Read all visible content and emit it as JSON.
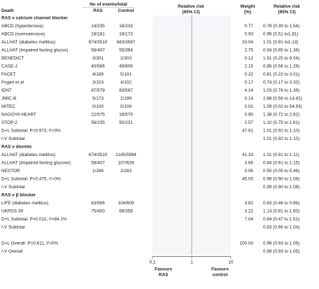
{
  "chart_data": {
    "type": "forest",
    "header": {
      "events_group": "No of events/total",
      "col_label": "Death",
      "col_ras": "RAS",
      "col_control": "Control",
      "rr_line1": "Relative risk",
      "rr_line2": "(95% CI)",
      "weight_line1": "Weight",
      "weight_line2": "(%)",
      "ci_line1": "Relative risk",
      "ci_line2": "(95% CI)"
    },
    "x_scale": "log",
    "xlim": [
      0.1,
      10
    ],
    "x_ticks": [
      {
        "value": 0.1,
        "label": "0.1"
      },
      {
        "value": 1,
        "label": "1"
      },
      {
        "value": 10,
        "label": "10"
      }
    ],
    "favours_left": [
      "Favours",
      "RAS"
    ],
    "favours_right": [
      "Favours",
      "control"
    ],
    "rows": [
      {
        "kind": "group",
        "label": "RAS v calcium channel blocker"
      },
      {
        "kind": "study",
        "label": "ABCD (hypertensive)",
        "ras": "14/235",
        "control": "18/233",
        "weight": "0.77",
        "ci": "0.78 (0.39 to 1.54)",
        "rr": 0.78,
        "lo": 0.39,
        "hi": 1.54,
        "w": 0.77
      },
      {
        "kind": "study",
        "label": "ABCD (normotensive)",
        "ras": "19/181",
        "control": "19/173",
        "weight": "0.93",
        "ci": "0.96 (0.51 to1.81)",
        "rr": 0.96,
        "lo": 0.51,
        "hi": 1.81,
        "w": 0.93
      },
      {
        "kind": "study",
        "label": "ALLHAT (diabetes mellitus)",
        "ras": "674/3510",
        "control": "683/3597",
        "weight": "33.04",
        "ci": "1.01 (0.91 to1.13)",
        "rr": 1.01,
        "lo": 0.91,
        "hi": 1.13,
        "w": 33.04
      },
      {
        "kind": "study",
        "label": "ALLHAT (Impaired fasting glucos)",
        "ras": "58/407",
        "control": "55/364",
        "weight": "2.75",
        "ci": "0.94 (0.65 to 1.36)",
        "rr": 0.94,
        "lo": 0.65,
        "hi": 1.36,
        "w": 2.75
      },
      {
        "kind": "study",
        "label": "BENEDICT",
        "ras": "3/301",
        "control": "2/303",
        "weight": "0.12",
        "ci": "1.51 (0.25 to 9.04)",
        "rr": 1.51,
        "lo": 0.25,
        "hi": 9.04,
        "w": 0.12
      },
      {
        "kind": "study",
        "label": "CASE-J",
        "ras": "40/586",
        "control": "49/609",
        "weight": "2.15",
        "ci": "0.85 (0.56 to 1.29)",
        "rr": 0.85,
        "lo": 0.56,
        "hi": 1.29,
        "w": 2.15
      },
      {
        "kind": "study",
        "label": "FACET",
        "ras": "4/189",
        "control": "5/191",
        "weight": "0.22",
        "ci": "0.81 (0.22 to 3.01)",
        "rr": 0.81,
        "lo": 0.22,
        "hi": 3.01,
        "w": 0.22
      },
      {
        "kind": "study",
        "label": "Fogari et al",
        "ras": "3/103",
        "control": "4/102",
        "weight": "0.17",
        "ci": "0.74 (0.17 to 3.32)",
        "rr": 0.74,
        "lo": 0.17,
        "hi": 3.32,
        "w": 0.17
      },
      {
        "kind": "study",
        "label": "IDNT",
        "ras": "87/579",
        "control": "83/567",
        "weight": "4.14",
        "ci": "1.03 (0.76 to 1.39)",
        "rr": 1.03,
        "lo": 0.76,
        "hi": 1.39,
        "w": 4.14
      },
      {
        "kind": "study",
        "label": "JMIC-B",
        "ras": "5/173",
        "control": "2/199",
        "weight": "0.14",
        "ci": "2.88 (0.56 to 14.82)",
        "rr": 2.88,
        "lo": 0.56,
        "hi": 14.82,
        "w": 0.14
      },
      {
        "kind": "study",
        "label": "MITEC",
        "ras": "0/100",
        "control": "0/109",
        "weight": "0.02",
        "ci": "1.09 (0.02 to 54.93)",
        "rr": 1.09,
        "lo": 0.02,
        "hi": 54.93,
        "w": 0.02
      },
      {
        "kind": "study",
        "label": "NAGOYA HEART",
        "ras": "22/575",
        "control": "16/575",
        "weight": "0.90",
        "ci": "1.38 (0.72 to 2.62)",
        "rr": 1.38,
        "lo": 0.72,
        "hi": 2.62,
        "w": 0.9
      },
      {
        "kind": "study",
        "label": "STOP-2",
        "ras": "56/235",
        "control": "50/231",
        "weight": "2.57",
        "ci": "1.10 (0.75 to 1.61)",
        "rr": 1.1,
        "lo": 0.75,
        "hi": 1.61,
        "w": 2.57
      },
      {
        "kind": "summary",
        "label": "D+L Subtotal: P=0.973, I²=0%",
        "weight": "47.91",
        "ci": "1.01 (0.92 to 1.10)",
        "rr": 1.01,
        "lo": 0.92,
        "hi": 1.1
      },
      {
        "kind": "summary",
        "label": "I-V Subtotal",
        "weight": "",
        "ci": "1.01 (0.92 to 1.10)",
        "rr": 1.01,
        "lo": 0.92,
        "hi": 1.1
      },
      {
        "kind": "group",
        "label": "RAS v diuretic"
      },
      {
        "kind": "study",
        "label": "ALLHAT (diabetes mellitus)",
        "ras": "674/3510",
        "control": "1145/5994",
        "weight": "41.33",
        "ci": "1.01 (0.91 to 1.11)",
        "rr": 1.01,
        "lo": 0.91,
        "hi": 1.11,
        "w": 41.33
      },
      {
        "kind": "study",
        "label": "ALLHAT (Impaired fasting glucose)",
        "ras": "58/407",
        "control": "107/628",
        "weight": "3.66",
        "ci": "0.84 (0.61 to 1.15)",
        "rr": 0.84,
        "lo": 0.61,
        "hi": 1.15,
        "w": 3.66
      },
      {
        "kind": "study",
        "label": "NESTOR",
        "ras": "1/286",
        "control": "2/283",
        "weight": "0.06",
        "ci": "0.50 (0.05 to 5.46)",
        "rr": 0.5,
        "lo": 0.05,
        "hi": 5.46,
        "w": 0.06
      },
      {
        "kind": "summary",
        "label": "D+L Subtotal: P=0.475, I²=0%",
        "weight": "45.05",
        "ci": "0.99 (0.90 to 1.08)",
        "rr": 0.99,
        "lo": 0.9,
        "hi": 1.08
      },
      {
        "kind": "summary",
        "label": "I-V Subtotal",
        "weight": "",
        "ci": "0.99 (0.90 to 1.08)",
        "rr": 0.99,
        "lo": 0.9,
        "hi": 1.08
      },
      {
        "kind": "group",
        "label": "RAS v β blocker"
      },
      {
        "kind": "study",
        "label": "LIFE (diabetes mellitus)",
        "ras": "63/586",
        "control": "104/609",
        "weight": "3.82",
        "ci": "0.63 (0.46 to 0.86)",
        "rr": 0.63,
        "lo": 0.46,
        "hi": 0.86,
        "w": 3.82
      },
      {
        "kind": "study",
        "label": "UKPDS 39",
        "ras": "75/400",
        "control": "59/358",
        "weight": "3.22",
        "ci": "1.14 (0.81 to 1.60)",
        "rr": 1.14,
        "lo": 0.81,
        "hi": 1.6,
        "w": 3.22
      },
      {
        "kind": "summary",
        "label": "D+L Subtotal: P=0.012, I²=84.1%",
        "weight": "7.04",
        "ci": "0.84 (0.47 to 1.51)",
        "rr": 0.84,
        "lo": 0.47,
        "hi": 1.51
      },
      {
        "kind": "summary",
        "label": "I-V Subtotal",
        "weight": "",
        "ci": "0.83 (0.66 to 1.04)",
        "rr": 0.83,
        "lo": 0.66,
        "hi": 1.04
      },
      {
        "kind": "blank"
      },
      {
        "kind": "summary",
        "label": "D+L Overall: P=0.611, I²=0%",
        "weight": "100.00",
        "ci": "0.99 (0.93 to 1.05)",
        "rr": 0.99,
        "lo": 0.93,
        "hi": 1.05
      },
      {
        "kind": "summary",
        "label": "I-V Overall",
        "weight": "",
        "ci": "0.99 (0.93 to 1.05)",
        "rr": 0.99,
        "lo": 0.93,
        "hi": 1.05
      }
    ],
    "colors": {
      "marker": "#1a6fc9",
      "marker_light": "#5aa0e6",
      "text": "#222222",
      "axis": "#555555",
      "null_line": "#888888"
    }
  }
}
